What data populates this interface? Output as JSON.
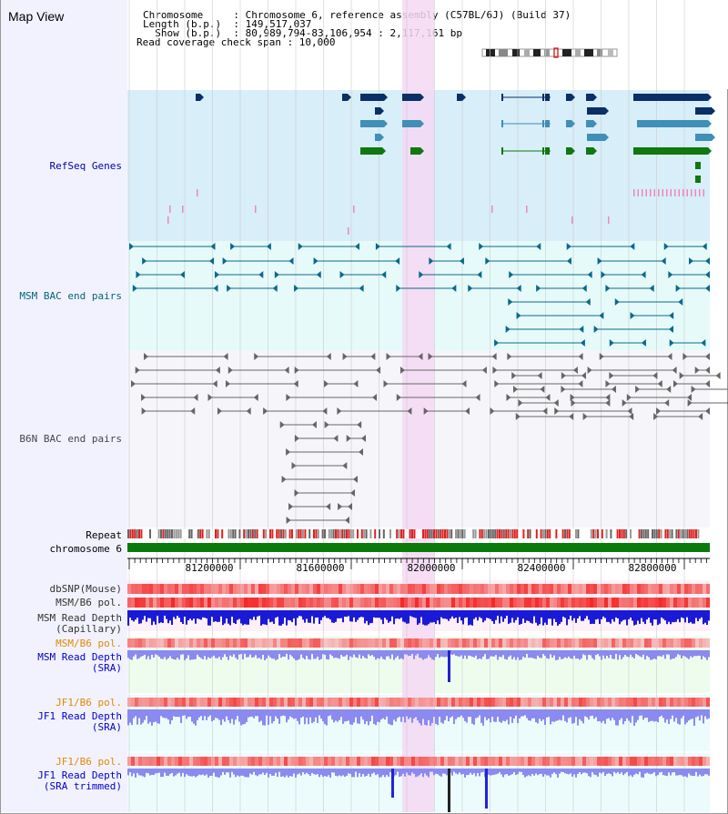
{
  "view": {
    "title": "Map View",
    "info_lines": [
      "Chromosome     : Chromosome 6, reference assembly (C57BL/6J) (Build 37)",
      "Length (b.p.)  : 149,517,037",
      "  Show (b.p.)  : 80,989,794-83,106,954 : 2,117,161 bp",
      "Read coverage check span : 10,000"
    ]
  },
  "tracks": {
    "refseq": "RefSeq Genes",
    "msm_bac": "MSM BAC end pairs",
    "b6n_bac": "B6N BAC end pairs",
    "repeat": "Repeat",
    "chromosome": "chromosome 6",
    "dbsnp": "dbSNP(Mouse)",
    "msm_pol": "MSM/B6 pol.",
    "msm_cap_1": "MSM Read Depth",
    "msm_cap_2": "(Capillary)",
    "msm_pol_2": "MSM/B6 pol.",
    "msm_sra_1": "MSM Read Depth",
    "msm_sra_2": "(SRA)",
    "jf1_pol": "JF1/B6 pol.",
    "jf1_sra_1": "JF1 Read Depth",
    "jf1_sra_2": "(SRA)",
    "jf1_pol_2": "JF1/B6 pol.",
    "jf1_trim_1": "JF1 Read Depth",
    "jf1_trim_2": "(SRA trimmed)"
  },
  "axis": {
    "ticks": [
      "81200000",
      "81600000",
      "82000000",
      "82400000",
      "82800000"
    ]
  },
  "colors": {
    "refseq_bg": "#d8eef8",
    "msm_bg": "#e6fafa",
    "highlight": "#f5d8f3",
    "refseq_label": "#0000aa",
    "msm_label": "#006677",
    "b6n_label": "#444455",
    "orange_label": "#e08a00",
    "blue_label": "#0000cc",
    "gene_dark": "#0b2f66",
    "gene_mid": "#3f8fb6",
    "gene_green": "#117711",
    "bac_teal": "#0a6a8a",
    "bac_gray": "#666666",
    "chrom": "#0b7a0b",
    "depth_dark": "#1a1ad6",
    "depth_light": "#8a8af0"
  }
}
